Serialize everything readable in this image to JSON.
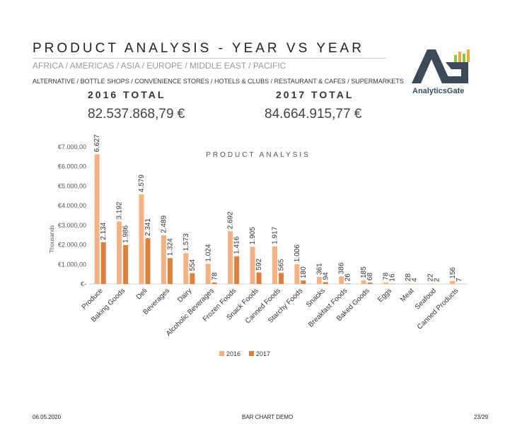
{
  "header": {
    "title": "PRODUCT ANALYSIS - YEAR VS YEAR",
    "regions": "AFRICA / AMERICAS / ASIA / EUROPE / MIDDLE EAST / PACIFIC",
    "channels": "ALTERNATIVE / BOTTLE SHOPS / CONVENIENCE STORES / HOTELS & CLUBS / RESTAURANT & CAFES / SUPERMARKETS"
  },
  "totals": {
    "label_2016": "2016 TOTAL",
    "value_2016": "82.537.868,79 €",
    "label_2017": "2017 TOTAL",
    "value_2017": "84.664.915,77 €"
  },
  "logo": {
    "text": "AnalyticsGate",
    "icon": "analyticsgate-logo-icon"
  },
  "footer": {
    "date": "06.05.2020",
    "center": "BAR CHART DEMO",
    "page": "23/29"
  },
  "colors": {
    "series_2016": "#F4B183",
    "series_2017": "#E07E3C",
    "grid": "#e6e6e6",
    "logo_dark": "#3b4a56"
  },
  "chart_data": {
    "type": "bar",
    "title": "PRODUCT ANALYSIS",
    "xlabel": "",
    "ylabel": "Thousands",
    "ylim": [
      0,
      7000
    ],
    "y_ticks": [
      0,
      1000,
      2000,
      3000,
      4000,
      5000,
      6000,
      7000
    ],
    "y_tick_labels": [
      "€-",
      "€1.000,00",
      "€2.000,00",
      "€3.000,00",
      "€4.000,00",
      "€5.000,00",
      "€6.000,00",
      "€7.000,00"
    ],
    "grid": false,
    "legend_position": "bottom",
    "categories": [
      "Produce",
      "Baking Goods",
      "Deli",
      "Beverages",
      "Dairy",
      "Alcoholic Beverages",
      "Frozen Foods",
      "Snack Foods",
      "Canned Foods",
      "Starchy Foods",
      "Snacks",
      "Breakfast Foods",
      "Baked Goods",
      "Eggs",
      "Meat",
      "Seafood",
      "Canned Products"
    ],
    "series": [
      {
        "name": "2016",
        "values": [
          6627,
          3192,
          4579,
          2489,
          1573,
          1024,
          2692,
          1905,
          1917,
          1006,
          361,
          386,
          185,
          78,
          28,
          22,
          156
        ],
        "labels": [
          "6.627",
          "3.192",
          "4.579",
          "2.489",
          "1.573",
          "1.024",
          "2.692",
          "1.905",
          "1.917",
          "1.006",
          "361",
          "386",
          "185",
          "78",
          "28",
          "22",
          "156"
        ]
      },
      {
        "name": "2017",
        "values": [
          2134,
          1986,
          2341,
          1324,
          554,
          78,
          1416,
          592,
          565,
          180,
          94,
          26,
          68,
          16,
          4,
          2,
          7
        ],
        "labels": [
          "2.134",
          "1.986",
          "2.341",
          "1.324",
          "554",
          "78",
          "1.416",
          "592",
          "565",
          "180",
          "94",
          "26",
          "68",
          "16",
          "4",
          "2",
          "7"
        ]
      }
    ]
  }
}
